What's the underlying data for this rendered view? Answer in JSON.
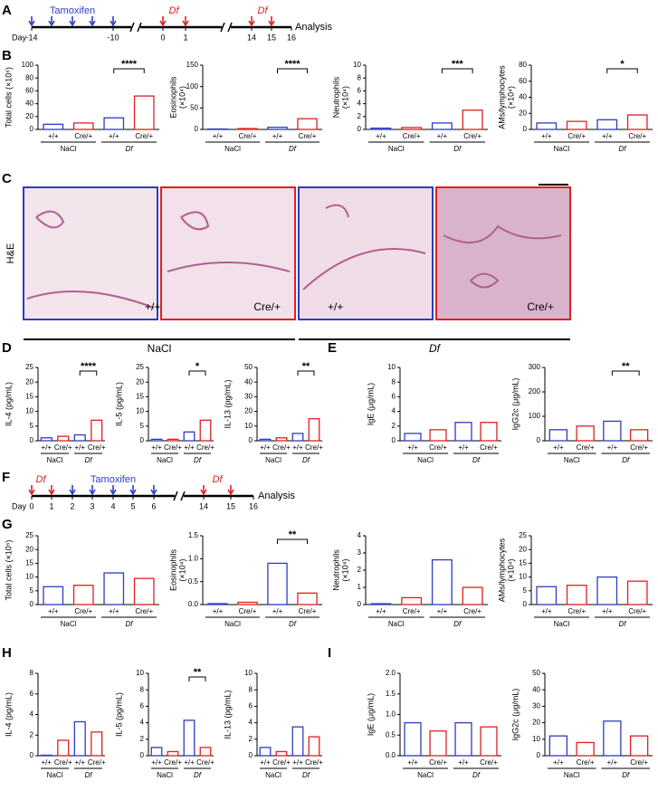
{
  "panels": [
    "A",
    "B",
    "C",
    "D",
    "E",
    "F",
    "G",
    "H",
    "I"
  ],
  "timeline_a": {
    "day": "Day",
    "tamoxifen": "Tamoxifen",
    "df": [
      "Df",
      "Df"
    ],
    "analysis": "Analysis",
    "days": [
      "-14",
      "-10",
      "0",
      "1",
      "14",
      "15",
      "16"
    ]
  },
  "timeline_f": {
    "day": "Day",
    "tamoxifen": "Tamoxifen",
    "df": [
      "Df",
      "Df"
    ],
    "analysis": "Analysis",
    "days": [
      "0",
      "1",
      "2",
      "3",
      "4",
      "5",
      "6",
      "14",
      "15",
      "16"
    ]
  },
  "histology": {
    "stain": "H&E",
    "genotypes": [
      "+/+",
      "Cre/+",
      "+/+",
      "Cre/+"
    ],
    "groups": [
      "NaCl",
      "Df"
    ]
  },
  "chart_data": [
    {
      "type": "bar",
      "ylabel": [
        "Total cells (×10⁵)"
      ],
      "categories": [
        "+/+",
        "Cre/+",
        "+/+",
        "Cre/+"
      ],
      "groups": [
        "NaCl",
        "Df"
      ],
      "values": [
        8,
        10,
        18,
        52
      ],
      "colors": [
        "#2e3cc4",
        "#e02020",
        "#2e3cc4",
        "#e02020"
      ],
      "ylim": [
        0,
        100
      ],
      "yticks": [
        0,
        20,
        40,
        60,
        80,
        100
      ],
      "significance": "****"
    },
    {
      "type": "bar",
      "ylabel": [
        "Eosinophils",
        "(×10⁴)"
      ],
      "categories": [
        "+/+",
        "Cre/+",
        "+/+",
        "Cre/+"
      ],
      "groups": [
        "NaCl",
        "Df"
      ],
      "values": [
        1,
        2,
        5,
        25
      ],
      "colors": [
        "#2e3cc4",
        "#e02020",
        "#2e3cc4",
        "#e02020"
      ],
      "ylim": [
        0,
        150
      ],
      "yticks": [
        0,
        50,
        100,
        150
      ],
      "significance": "****"
    },
    {
      "type": "bar",
      "ylabel": [
        "Neutrophils",
        "(×10⁴)"
      ],
      "categories": [
        "+/+",
        "Cre/+",
        "+/+",
        "Cre/+"
      ],
      "groups": [
        "NaCl",
        "Df"
      ],
      "values": [
        0.2,
        0.3,
        1,
        3
      ],
      "colors": [
        "#2e3cc4",
        "#e02020",
        "#2e3cc4",
        "#e02020"
      ],
      "ylim": [
        0,
        10
      ],
      "yticks": [
        0,
        2,
        4,
        6,
        8,
        10
      ],
      "significance": "***"
    },
    {
      "type": "bar",
      "ylabel": [
        "AMs/lymphocytes",
        "(×10⁴)"
      ],
      "categories": [
        "+/+",
        "Cre/+",
        "+/+",
        "Cre/+"
      ],
      "groups": [
        "NaCl",
        "Df"
      ],
      "values": [
        8,
        10,
        12,
        18
      ],
      "colors": [
        "#2e3cc4",
        "#e02020",
        "#2e3cc4",
        "#e02020"
      ],
      "ylim": [
        0,
        80
      ],
      "yticks": [
        0,
        20,
        40,
        60,
        80
      ],
      "significance": "*"
    },
    {
      "type": "bar",
      "ylabel": [
        "IL-4 (pg/mL)"
      ],
      "categories": [
        "+/+",
        "Cre/+",
        "+/+",
        "Cre/+"
      ],
      "groups": [
        "NaCl",
        "Df"
      ],
      "values": [
        1,
        1.5,
        2,
        7
      ],
      "colors": [
        "#2e3cc4",
        "#e02020",
        "#2e3cc4",
        "#e02020"
      ],
      "ylim": [
        0,
        25
      ],
      "yticks": [
        0,
        5,
        10,
        15,
        20,
        25
      ],
      "significance": "****"
    },
    {
      "type": "bar",
      "ylabel": [
        "IL-5 (pg/mL)"
      ],
      "categories": [
        "+/+",
        "Cre/+",
        "+/+",
        "Cre/+"
      ],
      "groups": [
        "NaCl",
        "Df"
      ],
      "values": [
        0.5,
        0.5,
        3,
        7
      ],
      "colors": [
        "#2e3cc4",
        "#e02020",
        "#2e3cc4",
        "#e02020"
      ],
      "ylim": [
        0,
        25
      ],
      "yticks": [
        0,
        5,
        10,
        15,
        20,
        25
      ],
      "significance": "*"
    },
    {
      "type": "bar",
      "ylabel": [
        "IL-13 (pg/mL)"
      ],
      "categories": [
        "+/+",
        "Cre/+",
        "+/+",
        "Cre/+"
      ],
      "groups": [
        "NaCl",
        "Df"
      ],
      "values": [
        1,
        2,
        5,
        15
      ],
      "colors": [
        "#2e3cc4",
        "#e02020",
        "#2e3cc4",
        "#e02020"
      ],
      "ylim": [
        0,
        50
      ],
      "yticks": [
        0,
        10,
        20,
        30,
        40,
        50
      ],
      "significance": "**"
    },
    {
      "type": "bar",
      "ylabel": [
        "IgE (μg/mL)"
      ],
      "categories": [
        "+/+",
        "Cre/+",
        "+/+",
        "Cre/+"
      ],
      "groups": [
        "NaCl",
        "Df"
      ],
      "values": [
        1,
        1.5,
        2.5,
        2.5
      ],
      "colors": [
        "#2e3cc4",
        "#e02020",
        "#2e3cc4",
        "#e02020"
      ],
      "ylim": [
        0,
        10
      ],
      "yticks": [
        0,
        2,
        4,
        6,
        8,
        10
      ]
    },
    {
      "type": "bar",
      "ylabel": [
        "IgG2c (μg/mL)"
      ],
      "categories": [
        "+/+",
        "Cre/+",
        "+/+",
        "Cre/+"
      ],
      "groups": [
        "NaCl",
        "Df"
      ],
      "values": [
        45,
        60,
        80,
        45
      ],
      "colors": [
        "#2e3cc4",
        "#e02020",
        "#2e3cc4",
        "#e02020"
      ],
      "ylim": [
        0,
        300
      ],
      "yticks": [
        0,
        100,
        200,
        300
      ],
      "significance": "**"
    },
    {
      "type": "bar",
      "ylabel": [
        "Total cells (×10⁵)"
      ],
      "categories": [
        "+/+",
        "Cre/+",
        "+/+",
        "Cre/+"
      ],
      "groups": [
        "NaCl",
        "Df"
      ],
      "values": [
        6.5,
        7,
        11.5,
        9.5
      ],
      "colors": [
        "#2e3cc4",
        "#e02020",
        "#2e3cc4",
        "#e02020"
      ],
      "ylim": [
        0,
        25
      ],
      "yticks": [
        0,
        5,
        10,
        15,
        20,
        25
      ]
    },
    {
      "type": "bar",
      "ylabel": [
        "Eosinophils",
        "(×10⁴)"
      ],
      "categories": [
        "+/+",
        "Cre/+",
        "+/+",
        "Cre/+"
      ],
      "groups": [
        "NaCl",
        "Df"
      ],
      "values": [
        0.02,
        0.05,
        0.9,
        0.25
      ],
      "colors": [
        "#2e3cc4",
        "#e02020",
        "#2e3cc4",
        "#e02020"
      ],
      "ylim": [
        0,
        1.5
      ],
      "yticks": [
        {
          "value": 0,
          "label": "0.0"
        },
        0.5,
        {
          "value": 1,
          "label": "1.0"
        },
        1.5
      ],
      "significance": "**"
    },
    {
      "type": "bar",
      "ylabel": [
        "Neutrophils",
        "(×10⁴)"
      ],
      "categories": [
        "+/+",
        "Cre/+",
        "+/+",
        "Cre/+"
      ],
      "groups": [
        "NaCl",
        "Df"
      ],
      "values": [
        0.05,
        0.4,
        2.6,
        1
      ],
      "colors": [
        "#2e3cc4",
        "#e02020",
        "#2e3cc4",
        "#e02020"
      ],
      "ylim": [
        0,
        4
      ],
      "yticks": [
        0,
        1,
        2,
        3,
        4
      ]
    },
    {
      "type": "bar",
      "ylabel": [
        "AMs/lymphocytes",
        "(×10⁴)"
      ],
      "categories": [
        "+/+",
        "Cre/+",
        "+/+",
        "Cre/+"
      ],
      "groups": [
        "NaCl",
        "Df"
      ],
      "values": [
        6.5,
        7,
        10,
        8.5
      ],
      "colors": [
        "#2e3cc4",
        "#e02020",
        "#2e3cc4",
        "#e02020"
      ],
      "ylim": [
        0,
        25
      ],
      "yticks": [
        0,
        5,
        10,
        15,
        20,
        25
      ]
    },
    {
      "type": "bar",
      "ylabel": [
        "IL-4 (pg/mL)"
      ],
      "categories": [
        "+/+",
        "Cre/+",
        "+/+",
        "Cre/+"
      ],
      "groups": [
        "NaCl",
        "Df"
      ],
      "values": [
        0.05,
        1.5,
        3.3,
        2.3
      ],
      "colors": [
        "#2e3cc4",
        "#e02020",
        "#2e3cc4",
        "#e02020"
      ],
      "ylim": [
        0,
        8
      ],
      "yticks": [
        0,
        2,
        4,
        6,
        8
      ]
    },
    {
      "type": "bar",
      "ylabel": [
        "IL-5 (pg/mL)"
      ],
      "categories": [
        "+/+",
        "Cre/+",
        "+/+",
        "Cre/+"
      ],
      "groups": [
        "NaCl",
        "Df"
      ],
      "values": [
        1,
        0.5,
        4.3,
        1
      ],
      "colors": [
        "#2e3cc4",
        "#e02020",
        "#2e3cc4",
        "#e02020"
      ],
      "ylim": [
        0,
        10
      ],
      "yticks": [
        0,
        2,
        4,
        6,
        8,
        10
      ],
      "significance": "**"
    },
    {
      "type": "bar",
      "ylabel": [
        "IL-13 (pg/mL)"
      ],
      "categories": [
        "+/+",
        "Cre/+",
        "+/+",
        "Cre/+"
      ],
      "groups": [
        "NaCl",
        "Df"
      ],
      "values": [
        1,
        0.5,
        3.5,
        2.3
      ],
      "colors": [
        "#2e3cc4",
        "#e02020",
        "#2e3cc4",
        "#e02020"
      ],
      "ylim": [
        0,
        10
      ],
      "yticks": [
        0,
        2,
        4,
        6,
        8,
        10
      ]
    },
    {
      "type": "bar",
      "ylabel": [
        "IgE (μg/mL)"
      ],
      "categories": [
        "+/+",
        "Cre/+",
        "+/+",
        "Cre/+"
      ],
      "groups": [
        "NaCl",
        "Df"
      ],
      "values": [
        0.8,
        0.6,
        0.8,
        0.7
      ],
      "colors": [
        "#2e3cc4",
        "#e02020",
        "#2e3cc4",
        "#e02020"
      ],
      "ylim": [
        0,
        2
      ],
      "yticks": [
        {
          "value": 0,
          "label": "0.0"
        },
        0.5,
        {
          "value": 1,
          "label": "1.0"
        },
        1.5,
        {
          "value": 2,
          "label": "2.0"
        }
      ]
    },
    {
      "type": "bar",
      "ylabel": [
        "IgG2c (μg/mL)"
      ],
      "categories": [
        "+/+",
        "Cre/+",
        "+/+",
        "Cre/+"
      ],
      "groups": [
        "NaCl",
        "Df"
      ],
      "values": [
        12,
        8,
        21,
        12
      ],
      "colors": [
        "#2e3cc4",
        "#e02020",
        "#2e3cc4",
        "#e02020"
      ],
      "ylim": [
        0,
        50
      ],
      "yticks": [
        0,
        10,
        20,
        30,
        40,
        50
      ]
    }
  ]
}
